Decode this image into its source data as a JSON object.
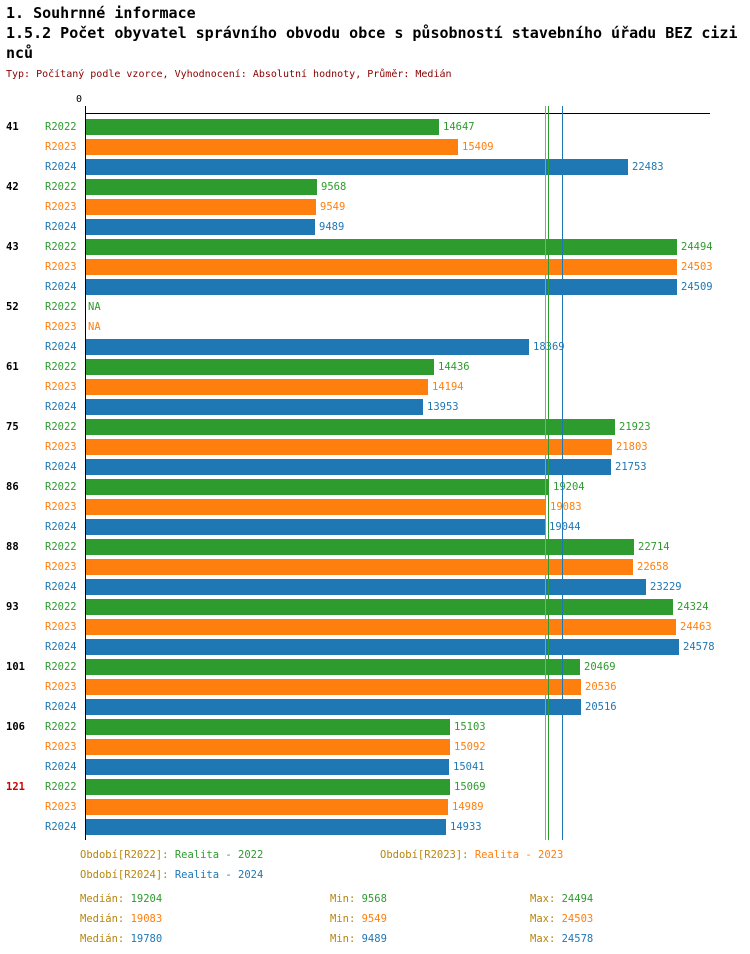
{
  "header": {
    "section_title": "1. Souhrnné informace",
    "title": "1.5.2 Počet obyvatel správního obvodu obce s působností stavebního úřadu BEZ cizinců",
    "subtitle": "Typ: Počítaný podle vzorce, Vyhodnocení: Absolutní hodnoty, Průměr: Medián"
  },
  "colors": {
    "R2022": "#2e9b2e",
    "R2023": "#ff7f0e",
    "R2024": "#1f77b4",
    "subtitle": "#8b0000",
    "highlight_row": "#cc0000",
    "legend_label": "#b8860b",
    "axis": "#000000"
  },
  "chart_data": {
    "type": "bar",
    "orientation": "horizontal",
    "origin_tick_label": "0",
    "xlim": [
      0,
      24578
    ],
    "grid": false,
    "legend_position": "bottom",
    "series": [
      "R2022",
      "R2023",
      "R2024"
    ],
    "na_label": "NA",
    "groups": [
      {
        "id": "41",
        "highlight": false,
        "values": [
          14647,
          15409,
          22483
        ]
      },
      {
        "id": "42",
        "highlight": false,
        "values": [
          9568,
          9549,
          9489
        ]
      },
      {
        "id": "43",
        "highlight": false,
        "values": [
          24494,
          24503,
          24509
        ]
      },
      {
        "id": "52",
        "highlight": false,
        "values": [
          null,
          null,
          18369
        ]
      },
      {
        "id": "61",
        "highlight": false,
        "values": [
          14436,
          14194,
          13953
        ]
      },
      {
        "id": "75",
        "highlight": false,
        "values": [
          21923,
          21803,
          21753
        ]
      },
      {
        "id": "86",
        "highlight": false,
        "values": [
          19204,
          19083,
          19044
        ]
      },
      {
        "id": "88",
        "highlight": false,
        "values": [
          22714,
          22658,
          23229
        ]
      },
      {
        "id": "93",
        "highlight": false,
        "values": [
          24324,
          24463,
          24578
        ]
      },
      {
        "id": "101",
        "highlight": false,
        "values": [
          20469,
          20536,
          20516
        ]
      },
      {
        "id": "106",
        "highlight": false,
        "values": [
          15103,
          15092,
          15041
        ]
      },
      {
        "id": "121",
        "highlight": true,
        "values": [
          15069,
          14989,
          14933
        ]
      }
    ],
    "median_lines": [
      {
        "series": "R2022",
        "value": 19204
      },
      {
        "series": "R2023",
        "value": 19083
      },
      {
        "series": "R2024",
        "value": 19780
      }
    ]
  },
  "legend": {
    "items": [
      {
        "prefix": "Období[R2022]:",
        "value": "Realita - 2022",
        "series": "R2022"
      },
      {
        "prefix": "Období[R2023]:",
        "value": "Realita - 2023",
        "series": "R2023"
      },
      {
        "prefix": "Období[R2024]:",
        "value": "Realita - 2024",
        "series": "R2024"
      }
    ]
  },
  "stats": {
    "rows": [
      {
        "series": "R2022",
        "cells": [
          {
            "label": "Medián:",
            "value": "19204"
          },
          {
            "label": "Min:",
            "value": "9568"
          },
          {
            "label": "Max:",
            "value": "24494"
          }
        ]
      },
      {
        "series": "R2023",
        "cells": [
          {
            "label": "Medián:",
            "value": "19083"
          },
          {
            "label": "Min:",
            "value": "9549"
          },
          {
            "label": "Max:",
            "value": "24503"
          }
        ]
      },
      {
        "series": "R2024",
        "cells": [
          {
            "label": "Medián:",
            "value": "19780"
          },
          {
            "label": "Min:",
            "value": "9489"
          },
          {
            "label": "Max:",
            "value": "24578"
          }
        ]
      }
    ]
  }
}
